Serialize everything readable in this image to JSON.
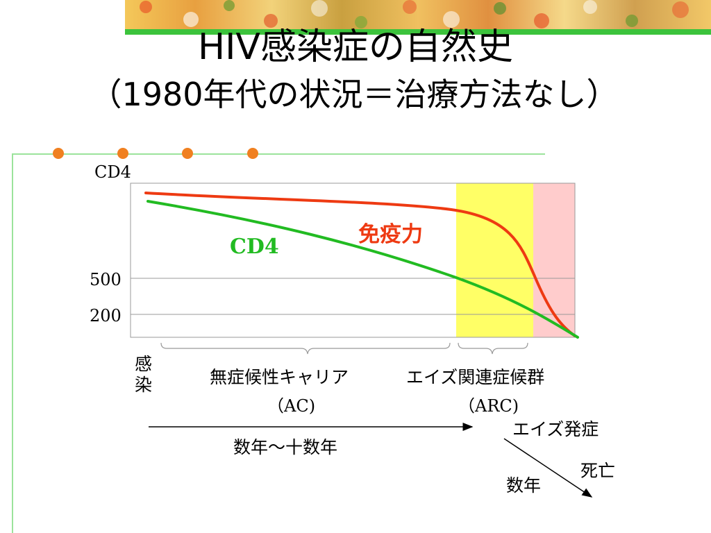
{
  "slide": {
    "title_line1": "HIV感染症の自然史",
    "title_line2": "（1980年代の状況＝治療方法なし）"
  },
  "chart_data": {
    "type": "line",
    "ylabel": "CD4",
    "y_ticks": [
      500,
      200
    ],
    "series": [
      {
        "name": "免疫力",
        "color": "#ee3a12"
      },
      {
        "name": "CD4",
        "color": "#22bb22"
      }
    ],
    "phases": [
      {
        "label": "無症候性キャリア",
        "abbr": "（AC)",
        "color": "#ffffff"
      },
      {
        "label": "エイズ関連症候群",
        "abbr": "（ARC)",
        "color": "#ffff66"
      },
      {
        "label": "",
        "abbr": "",
        "color": "#ffcccc"
      }
    ],
    "start_label": "感染",
    "ac_duration": "数年～十数年",
    "aids_onset": "エイズ発症",
    "death": "死亡",
    "death_duration": "数年"
  }
}
